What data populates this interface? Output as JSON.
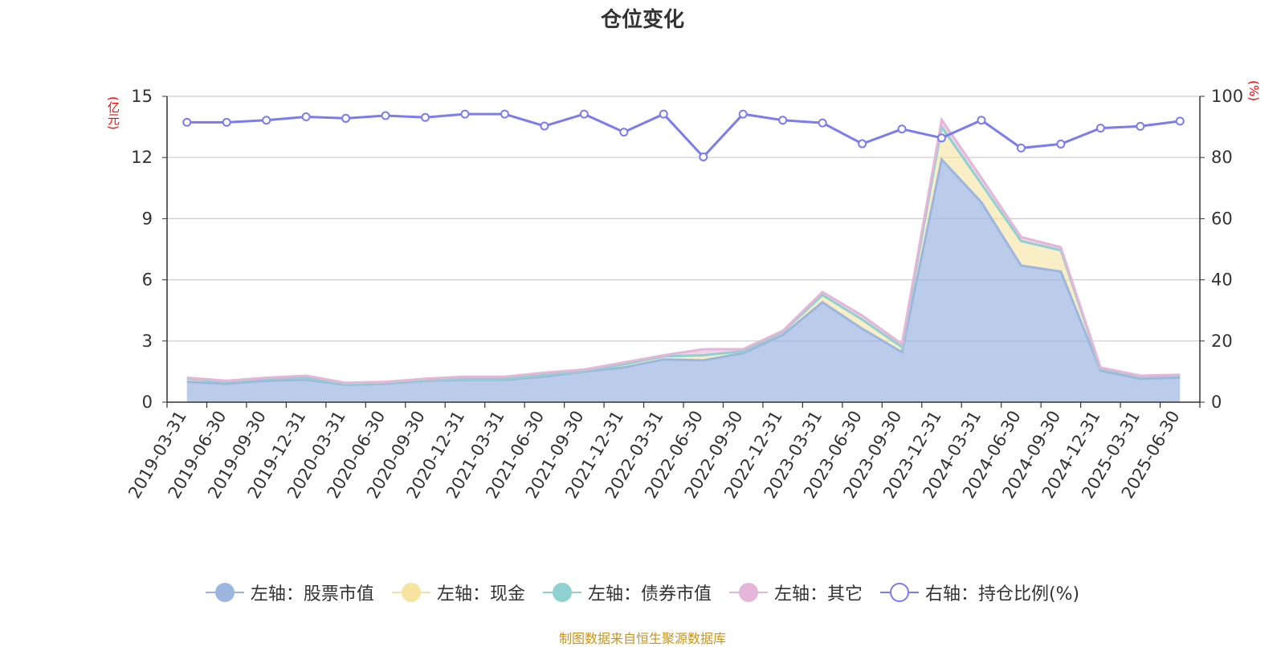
{
  "colors": {
    "stock": "#9db6e0",
    "cash": "#f7e3a0",
    "bond": "#8fd1d1",
    "other": "#e3b6da",
    "ratio": "#7b7cee",
    "grid": "#cccccc",
    "axis": "#333333",
    "unit": "#ff0000",
    "source": "#c8941b"
  },
  "chart_data": {
    "type": "area",
    "title": "仓位变化",
    "y_left_unit": "(亿元)",
    "y_right_unit": "(%)",
    "y_left_range": [
      0,
      15
    ],
    "y_left_ticks": [
      "0",
      "3",
      "6",
      "9",
      "12",
      "15"
    ],
    "y_right_range": [
      0,
      100
    ],
    "y_right_ticks": [
      "0",
      "20",
      "40",
      "60",
      "80",
      "100"
    ],
    "grid": true,
    "legend_position": "bottom",
    "categories": [
      "2019-03-31",
      "2019-06-30",
      "2019-09-30",
      "2019-12-31",
      "2020-03-31",
      "2020-06-30",
      "2020-09-30",
      "2020-12-31",
      "2021-03-31",
      "2021-06-30",
      "2021-09-30",
      "2021-12-31",
      "2022-03-31",
      "2022-06-30",
      "2022-09-30",
      "2022-12-31",
      "2023-03-31",
      "2023-06-30",
      "2023-09-30",
      "2023-12-31",
      "2024-03-31",
      "2024-06-30",
      "2024-09-30",
      "2024-12-31",
      "2025-03-31",
      "2025-06-30"
    ],
    "series": [
      {
        "name": "左轴：股票市值",
        "axis": "left",
        "type": "area",
        "values": [
          1.0,
          0.9,
          1.05,
          1.1,
          0.85,
          0.9,
          1.05,
          1.1,
          1.1,
          1.25,
          1.5,
          1.7,
          2.1,
          2.05,
          2.4,
          3.3,
          4.9,
          3.6,
          2.45,
          11.9,
          9.8,
          6.7,
          6.4,
          1.55,
          1.15,
          1.2
        ]
      },
      {
        "name": "左轴：现金",
        "axis": "left",
        "type": "area",
        "values": [
          0.15,
          0.1,
          0.1,
          0.1,
          0.05,
          0.05,
          0.05,
          0.05,
          0.05,
          0.1,
          0.05,
          0.15,
          0.15,
          0.25,
          0.1,
          0.15,
          0.35,
          0.45,
          0.25,
          1.6,
          0.9,
          1.2,
          1.05,
          0.1,
          0.1,
          0.1
        ]
      },
      {
        "name": "左轴：债券市值",
        "axis": "left",
        "type": "area",
        "values": [
          0,
          0,
          0,
          0,
          0,
          0,
          0,
          0,
          0,
          0,
          0,
          0,
          0,
          0,
          0,
          0,
          0,
          0,
          0,
          0,
          0,
          0,
          0,
          0,
          0,
          0
        ]
      },
      {
        "name": "左轴：其它",
        "axis": "left",
        "type": "area",
        "values": [
          0.05,
          0.05,
          0.05,
          0.1,
          0.05,
          0.05,
          0.05,
          0.1,
          0.1,
          0.1,
          0.05,
          0.1,
          0.05,
          0.3,
          0.1,
          0.05,
          0.15,
          0.2,
          0.15,
          0.35,
          0.3,
          0.2,
          0.15,
          0.05,
          0.05,
          0.05
        ]
      },
      {
        "name": "右轴：持仓比例(%)",
        "axis": "right",
        "type": "line",
        "values": [
          91.5,
          91.5,
          92.2,
          93.3,
          92.8,
          93.7,
          93.1,
          94.2,
          94.2,
          90.3,
          94.2,
          88.3,
          94.2,
          80.2,
          94.2,
          92.2,
          91.3,
          84.5,
          89.3,
          86.4,
          92.2,
          83.1,
          84.4,
          89.6,
          90.2,
          91.9
        ]
      }
    ]
  },
  "source": "制图数据来自恒生聚源数据库"
}
